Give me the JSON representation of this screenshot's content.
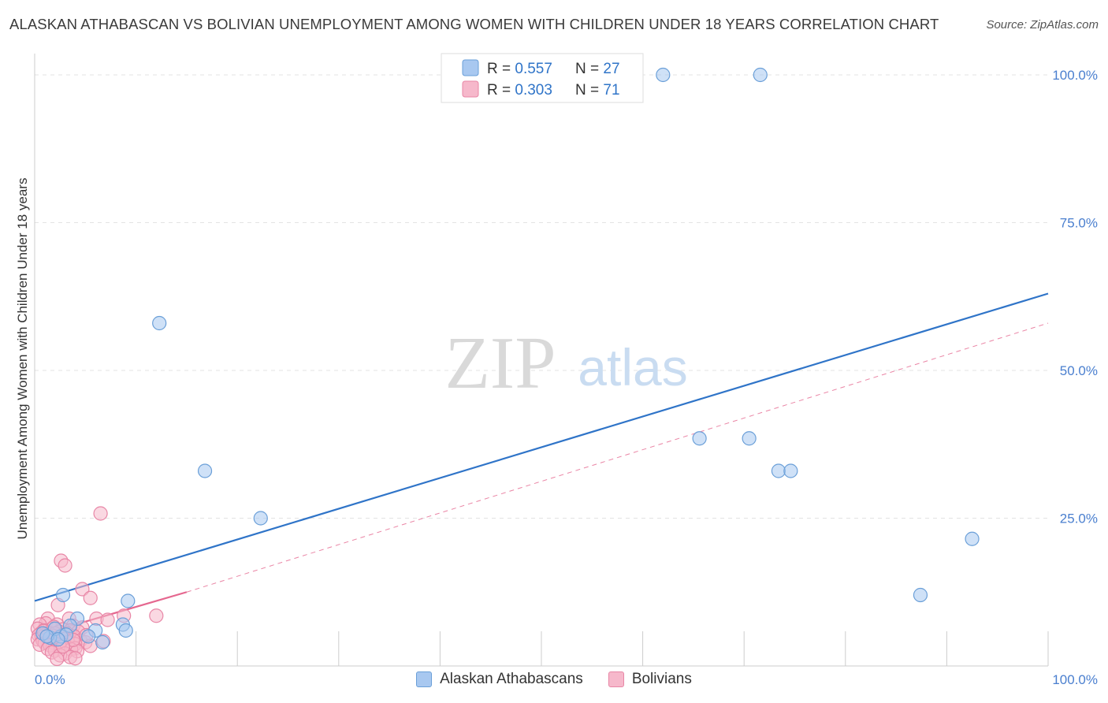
{
  "title": "ALASKAN ATHABASCAN VS BOLIVIAN UNEMPLOYMENT AMONG WOMEN WITH CHILDREN UNDER 18 YEARS CORRELATION CHART",
  "source": "Source: ZipAtlas.com",
  "watermark": {
    "zip": "ZIP",
    "atlas": "atlas"
  },
  "legend_top": [
    {
      "r_label": "R = ",
      "r_value": "0.557",
      "n_label": "N = ",
      "n_value": "27"
    },
    {
      "r_label": "R = ",
      "r_value": "0.303",
      "n_label": "N = ",
      "n_value": "71"
    }
  ],
  "legend_bottom": [
    "Alaskan Athabascans",
    "Bolivians"
  ],
  "colors": {
    "blue_fill": "#a8c8f0",
    "blue_stroke": "#6a9fd8",
    "blue_line": "#2f74c8",
    "pink_fill": "#f6b8cb",
    "pink_stroke": "#e886a6",
    "pink_line": "#e5678f",
    "tick_text": "#4a7fcf",
    "grid": "#e3e3e3"
  },
  "chart_data": {
    "type": "scatter",
    "title": "ALASKAN ATHABASCAN VS BOLIVIAN UNEMPLOYMENT AMONG WOMEN WITH CHILDREN UNDER 18 YEARS CORRELATION CHART",
    "xlabel": "",
    "ylabel": "Unemployment Among Women with Children Under 18 years",
    "xlim": [
      0,
      100
    ],
    "ylim": [
      0,
      102
    ],
    "x_tick_labels": [
      "0.0%",
      "100.0%"
    ],
    "y_ticks": [
      25,
      50,
      75,
      100
    ],
    "y_tick_labels": [
      "25.0%",
      "50.0%",
      "75.0%",
      "100.0%"
    ],
    "series": [
      {
        "name": "Alaskan Athabascans",
        "r": 0.557,
        "n": 27,
        "points": [
          [
            62,
            100
          ],
          [
            71.6,
            100
          ],
          [
            12.3,
            58
          ],
          [
            16.8,
            33
          ],
          [
            22.3,
            25
          ],
          [
            65.6,
            38.5
          ],
          [
            70.5,
            38.5
          ],
          [
            73.4,
            33
          ],
          [
            74.6,
            33
          ],
          [
            92.5,
            21.5
          ],
          [
            87.4,
            12
          ],
          [
            2.8,
            12
          ],
          [
            9.2,
            11
          ],
          [
            8.7,
            7
          ],
          [
            4.2,
            8
          ],
          [
            6.0,
            6
          ],
          [
            9.0,
            6
          ],
          [
            5.3,
            5
          ],
          [
            6.7,
            4
          ],
          [
            2.6,
            5
          ],
          [
            1.5,
            4.8
          ],
          [
            3.5,
            6.8
          ],
          [
            2.0,
            6.3
          ],
          [
            0.8,
            5.5
          ],
          [
            3.1,
            5.3
          ],
          [
            1.2,
            5.0
          ],
          [
            2.3,
            4.5
          ]
        ],
        "trend": {
          "x": [
            0,
            100
          ],
          "y": [
            11,
            63
          ],
          "style": "solid"
        }
      },
      {
        "name": "Bolivians",
        "r": 0.303,
        "n": 71,
        "points": [
          [
            6.5,
            25.8
          ],
          [
            2.6,
            17.8
          ],
          [
            3.0,
            17.0
          ],
          [
            4.7,
            13
          ],
          [
            5.5,
            11.5
          ],
          [
            2.3,
            10.3
          ],
          [
            8.8,
            8.5
          ],
          [
            12.0,
            8.5
          ],
          [
            6.1,
            8.0
          ],
          [
            1.3,
            8.0
          ],
          [
            3.4,
            8.0
          ],
          [
            7.2,
            7.8
          ],
          [
            1.1,
            7.2
          ],
          [
            2.2,
            7.0
          ],
          [
            0.5,
            7.0
          ],
          [
            3.8,
            6.8
          ],
          [
            4.7,
            6.5
          ],
          [
            0.3,
            6.3
          ],
          [
            1.7,
            6.3
          ],
          [
            2.8,
            6.2
          ],
          [
            3.5,
            6.0
          ],
          [
            0.9,
            6.0
          ],
          [
            2.4,
            5.8
          ],
          [
            4.3,
            5.8
          ],
          [
            1.4,
            5.6
          ],
          [
            0.6,
            5.5
          ],
          [
            2.0,
            5.5
          ],
          [
            3.2,
            5.5
          ],
          [
            1.0,
            5.3
          ],
          [
            0.4,
            5.2
          ],
          [
            1.8,
            5.1
          ],
          [
            2.6,
            5.0
          ],
          [
            3.9,
            5.0
          ],
          [
            0.7,
            4.9
          ],
          [
            1.5,
            4.8
          ],
          [
            2.2,
            4.7
          ],
          [
            3.0,
            4.6
          ],
          [
            0.3,
            4.5
          ],
          [
            1.2,
            4.5
          ],
          [
            2.0,
            4.4
          ],
          [
            4.5,
            4.3
          ],
          [
            0.8,
            4.3
          ],
          [
            1.6,
            4.2
          ],
          [
            2.5,
            4.1
          ],
          [
            3.3,
            4.0
          ],
          [
            5.0,
            4.0
          ],
          [
            1.0,
            3.9
          ],
          [
            2.0,
            3.8
          ],
          [
            4.0,
            3.7
          ],
          [
            0.5,
            3.6
          ],
          [
            1.5,
            3.5
          ],
          [
            3.0,
            3.5
          ],
          [
            5.5,
            3.4
          ],
          [
            2.5,
            3.2
          ],
          [
            4.0,
            3.0
          ],
          [
            1.3,
            2.9
          ],
          [
            3.6,
            2.8
          ],
          [
            2.0,
            2.6
          ],
          [
            4.2,
            2.5
          ],
          [
            1.7,
            2.3
          ],
          [
            3.0,
            2.1
          ],
          [
            2.5,
            1.8
          ],
          [
            3.5,
            1.5
          ],
          [
            4.0,
            1.3
          ],
          [
            2.2,
            1.2
          ],
          [
            0.9,
            5.9
          ],
          [
            1.9,
            6.6
          ],
          [
            3.8,
            4.4
          ],
          [
            6.8,
            4.2
          ],
          [
            5.1,
            5.2
          ],
          [
            2.8,
            3.3
          ]
        ],
        "trend_solid": {
          "x": [
            0,
            15
          ],
          "y": [
            5,
            12.5
          ]
        },
        "trend_dashed": {
          "x": [
            15,
            100
          ],
          "y": [
            12.5,
            58
          ]
        }
      }
    ]
  }
}
